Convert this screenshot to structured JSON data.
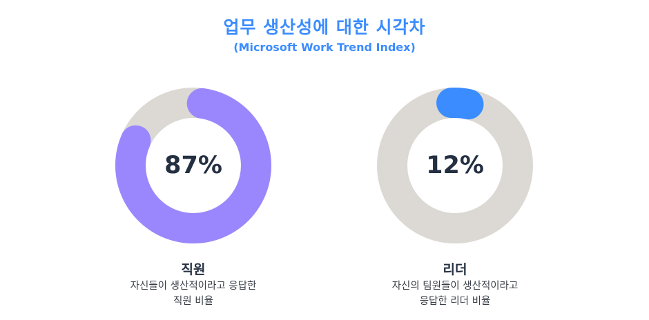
{
  "title": "업무 생산성에 대한 시각차",
  "subtitle": "(Microsoft Work Trend Index)",
  "colors": {
    "accent": "#3b8cff",
    "track": "#dcd9d4",
    "employee": "#9b87fd",
    "leader": "#3b8cff",
    "text": "#243042"
  },
  "chart_data": [
    {
      "type": "pie",
      "label": "직원",
      "value": 87,
      "value_label": "87%",
      "description_lines": [
        "자신들이 생산적이라고 응답한",
        "직원 비율"
      ]
    },
    {
      "type": "pie",
      "label": "리더",
      "value": 12,
      "value_label": "12%",
      "description_lines": [
        "자신의 팀원들이 생산적이라고",
        "응답한 리더 비율"
      ]
    }
  ]
}
